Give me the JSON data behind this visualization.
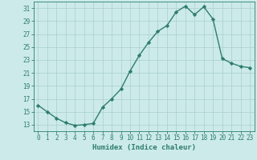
{
  "x": [
    0,
    1,
    2,
    3,
    4,
    5,
    6,
    7,
    8,
    9,
    10,
    11,
    12,
    13,
    14,
    15,
    16,
    17,
    18,
    19,
    20,
    21,
    22,
    23
  ],
  "y": [
    16,
    15,
    14,
    13.3,
    12.9,
    13,
    13.2,
    15.7,
    17,
    18.5,
    21.3,
    23.7,
    25.7,
    27.4,
    28.3,
    30.4,
    31.3,
    30,
    31.2,
    29.3,
    23.2,
    22.5,
    22,
    21.8
  ],
  "line_color": "#2e7d6e",
  "marker": "D",
  "marker_size": 2.2,
  "line_width": 1.0,
  "bg_color": "#cceaea",
  "grid_color": "#aacece",
  "xlabel": "Humidex (Indice chaleur)",
  "xlabel_fontsize": 6.5,
  "tick_color": "#2e7d6e",
  "tick_fontsize": 5.5,
  "ylim": [
    12,
    32
  ],
  "yticks": [
    13,
    15,
    17,
    19,
    21,
    23,
    25,
    27,
    29,
    31
  ],
  "xlim": [
    -0.5,
    23.5
  ],
  "xticks": [
    0,
    1,
    2,
    3,
    4,
    5,
    6,
    7,
    8,
    9,
    10,
    11,
    12,
    13,
    14,
    15,
    16,
    17,
    18,
    19,
    20,
    21,
    22,
    23
  ]
}
